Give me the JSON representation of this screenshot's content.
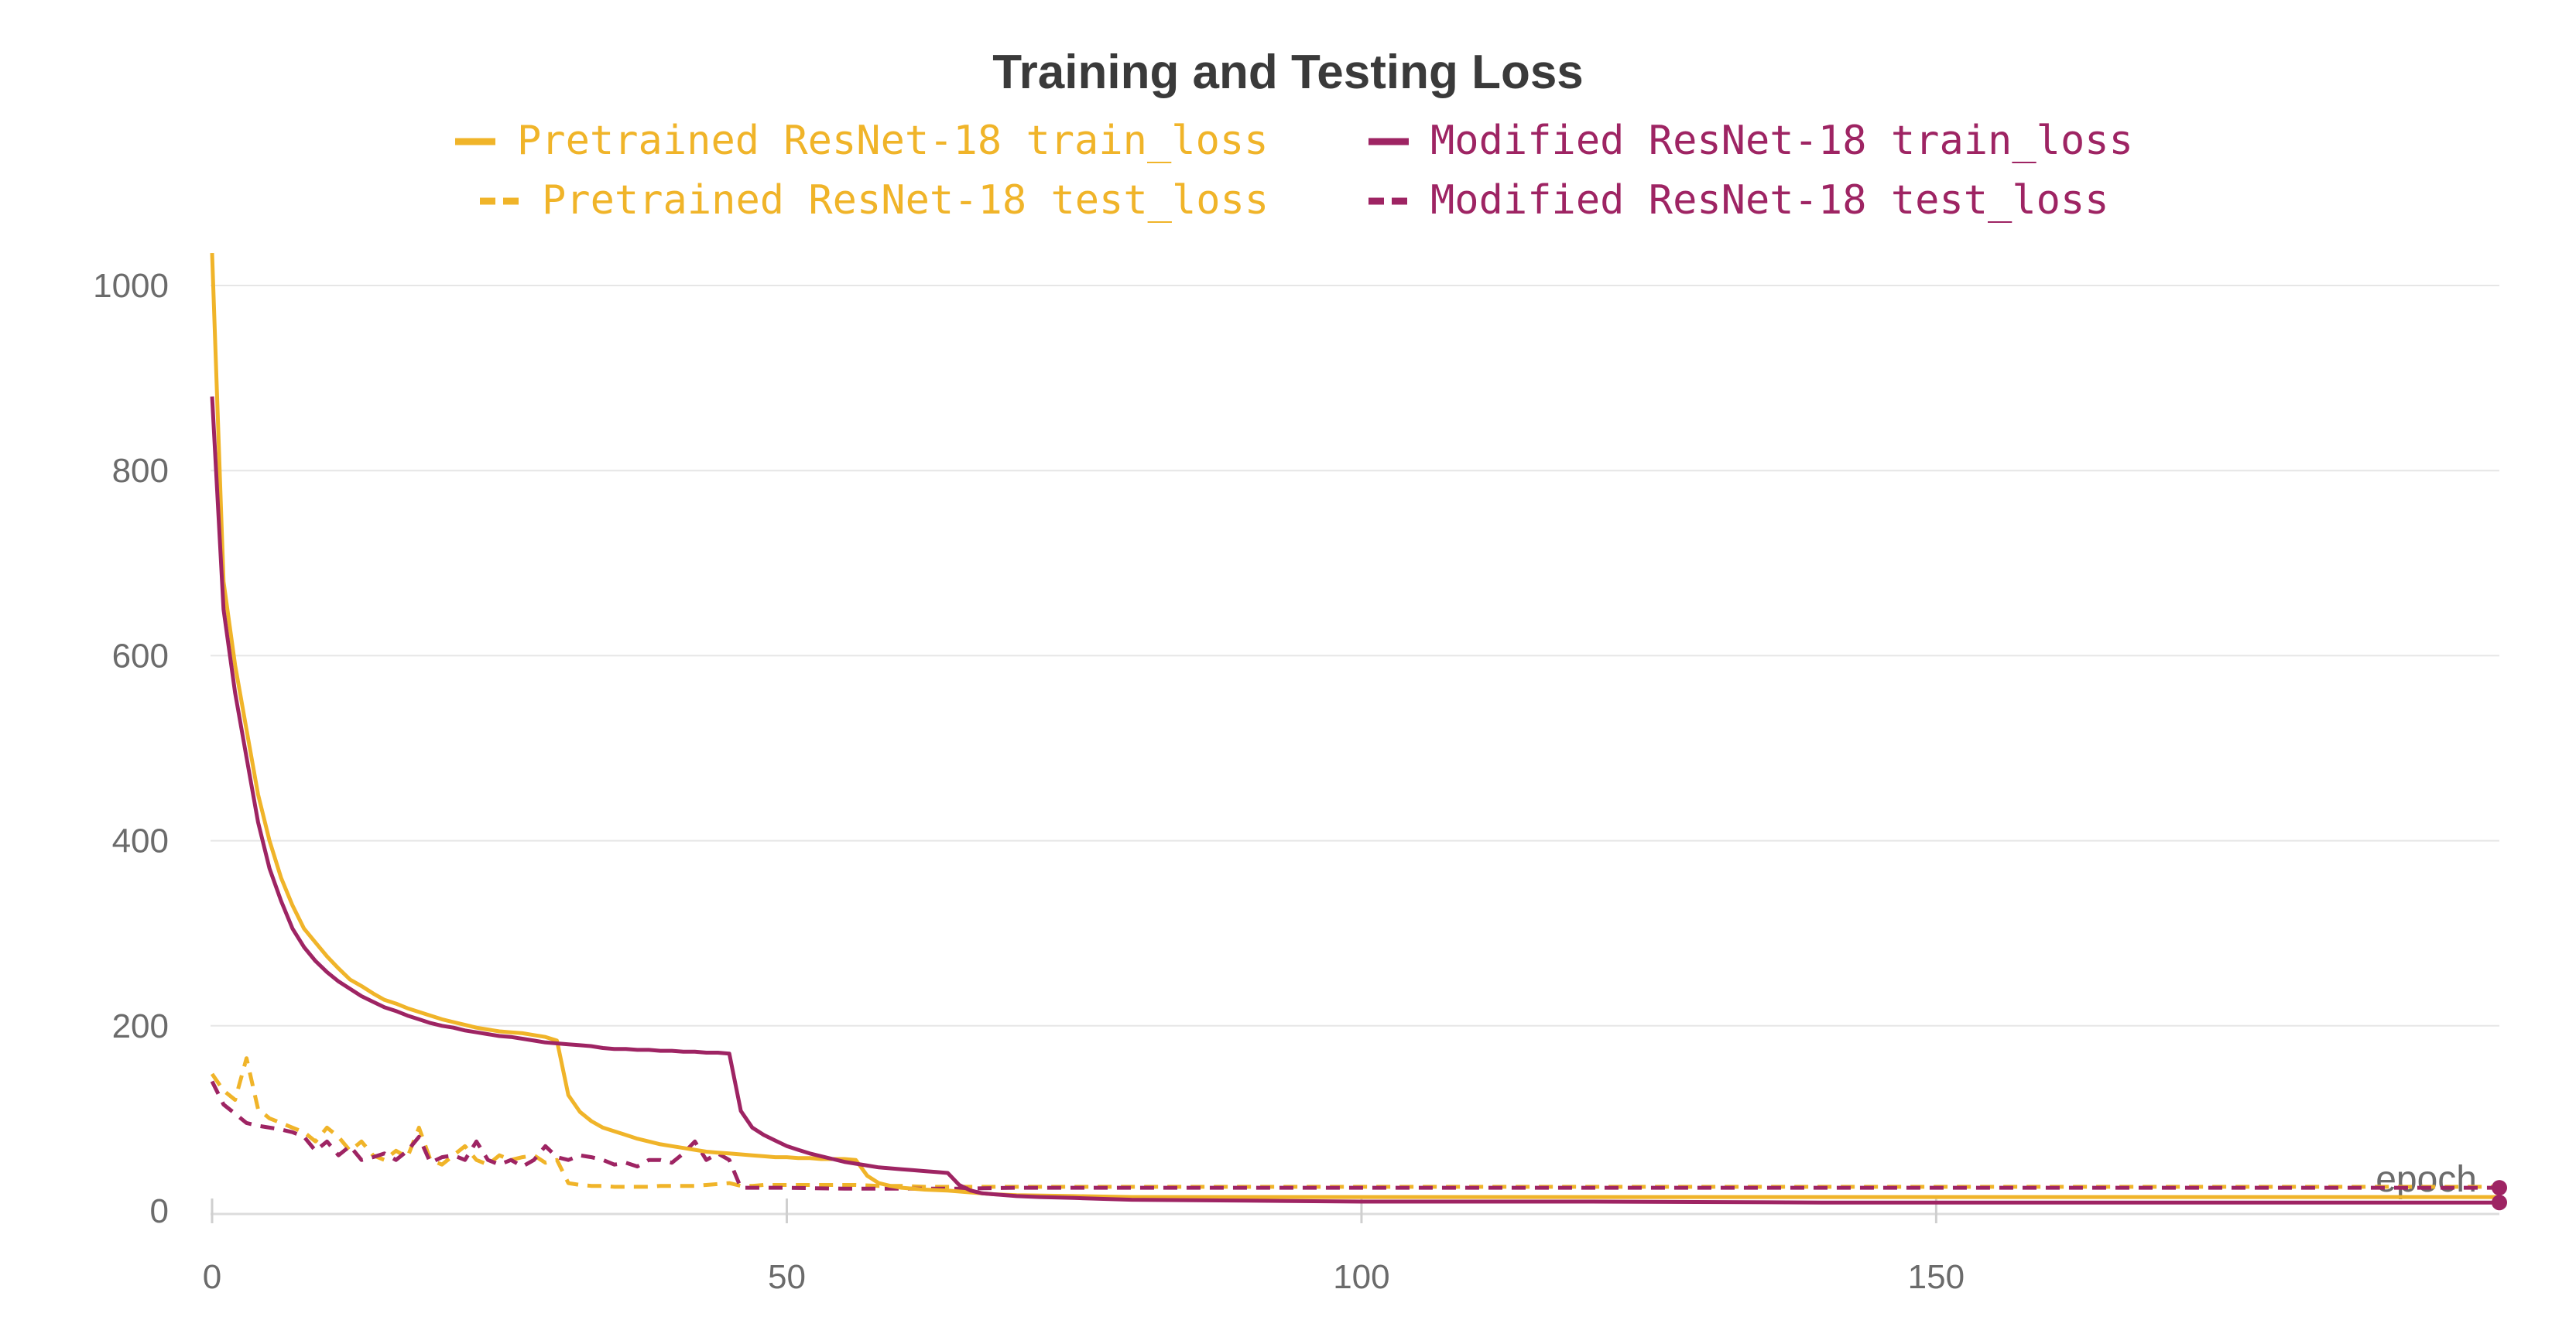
{
  "chart_data": {
    "type": "line",
    "title": "Training and Testing Loss",
    "xlabel": "epoch",
    "ylabel": "",
    "xlim": [
      0,
      199
    ],
    "ylim": [
      0,
      1000
    ],
    "x_ticks": [
      0,
      50,
      100,
      150
    ],
    "y_ticks": [
      0,
      200,
      400,
      600,
      800,
      1000
    ],
    "grid": true,
    "legend_position": "top-center",
    "series": [
      {
        "name": "Pretrained ResNet-18 train_loss",
        "color": "#F0B429",
        "style": "solid",
        "points": [
          [
            0,
            1035
          ],
          [
            1,
            680
          ],
          [
            2,
            590
          ],
          [
            3,
            520
          ],
          [
            4,
            450
          ],
          [
            5,
            400
          ],
          [
            6,
            360
          ],
          [
            7,
            330
          ],
          [
            8,
            305
          ],
          [
            9,
            290
          ],
          [
            10,
            275
          ],
          [
            11,
            262
          ],
          [
            12,
            250
          ],
          [
            13,
            243
          ],
          [
            14,
            235
          ],
          [
            15,
            228
          ],
          [
            16,
            224
          ],
          [
            17,
            219
          ],
          [
            18,
            215
          ],
          [
            19,
            211
          ],
          [
            20,
            207
          ],
          [
            21,
            204
          ],
          [
            22,
            201
          ],
          [
            23,
            198
          ],
          [
            24,
            196
          ],
          [
            25,
            194
          ],
          [
            26,
            193
          ],
          [
            27,
            192
          ],
          [
            28,
            190
          ],
          [
            29,
            188
          ],
          [
            30,
            184
          ],
          [
            31,
            125
          ],
          [
            32,
            107
          ],
          [
            33,
            97
          ],
          [
            34,
            90
          ],
          [
            35,
            86
          ],
          [
            36,
            82
          ],
          [
            37,
            78
          ],
          [
            38,
            75
          ],
          [
            39,
            72
          ],
          [
            40,
            70
          ],
          [
            41,
            68
          ],
          [
            42,
            66
          ],
          [
            43,
            64
          ],
          [
            44,
            63
          ],
          [
            45,
            62
          ],
          [
            46,
            61
          ],
          [
            47,
            60
          ],
          [
            48,
            59
          ],
          [
            49,
            58
          ],
          [
            50,
            58
          ],
          [
            51,
            57
          ],
          [
            52,
            57
          ],
          [
            53,
            56
          ],
          [
            54,
            56
          ],
          [
            55,
            56
          ],
          [
            56,
            55
          ],
          [
            57,
            38
          ],
          [
            58,
            30
          ],
          [
            59,
            27
          ],
          [
            60,
            25
          ],
          [
            62,
            23
          ],
          [
            64,
            22
          ],
          [
            66,
            20
          ],
          [
            68,
            18
          ],
          [
            70,
            17
          ],
          [
            75,
            16
          ],
          [
            80,
            15
          ],
          [
            90,
            15
          ],
          [
            100,
            15
          ],
          [
            120,
            15
          ],
          [
            140,
            15
          ],
          [
            160,
            15
          ],
          [
            180,
            15
          ],
          [
            199,
            15
          ]
        ]
      },
      {
        "name": "Modified ResNet-18 train_loss",
        "color": "#9E2463",
        "style": "solid",
        "points": [
          [
            0,
            880
          ],
          [
            1,
            650
          ],
          [
            2,
            560
          ],
          [
            3,
            490
          ],
          [
            4,
            420
          ],
          [
            5,
            370
          ],
          [
            6,
            335
          ],
          [
            7,
            305
          ],
          [
            8,
            285
          ],
          [
            9,
            270
          ],
          [
            10,
            258
          ],
          [
            11,
            248
          ],
          [
            12,
            240
          ],
          [
            13,
            232
          ],
          [
            14,
            226
          ],
          [
            15,
            220
          ],
          [
            16,
            216
          ],
          [
            17,
            211
          ],
          [
            18,
            207
          ],
          [
            19,
            203
          ],
          [
            20,
            200
          ],
          [
            21,
            198
          ],
          [
            22,
            195
          ],
          [
            23,
            193
          ],
          [
            24,
            191
          ],
          [
            25,
            189
          ],
          [
            26,
            188
          ],
          [
            27,
            186
          ],
          [
            28,
            184
          ],
          [
            29,
            182
          ],
          [
            30,
            181
          ],
          [
            31,
            180
          ],
          [
            32,
            179
          ],
          [
            33,
            178
          ],
          [
            34,
            176
          ],
          [
            35,
            175
          ],
          [
            36,
            175
          ],
          [
            37,
            174
          ],
          [
            38,
            174
          ],
          [
            39,
            173
          ],
          [
            40,
            173
          ],
          [
            41,
            172
          ],
          [
            42,
            172
          ],
          [
            43,
            171
          ],
          [
            44,
            171
          ],
          [
            45,
            170
          ],
          [
            46,
            108
          ],
          [
            47,
            90
          ],
          [
            48,
            82
          ],
          [
            49,
            76
          ],
          [
            50,
            70
          ],
          [
            51,
            66
          ],
          [
            52,
            62
          ],
          [
            53,
            59
          ],
          [
            54,
            56
          ],
          [
            55,
            53
          ],
          [
            56,
            51
          ],
          [
            57,
            49
          ],
          [
            58,
            47
          ],
          [
            59,
            46
          ],
          [
            60,
            45
          ],
          [
            61,
            44
          ],
          [
            62,
            43
          ],
          [
            63,
            42
          ],
          [
            64,
            41
          ],
          [
            65,
            28
          ],
          [
            66,
            22
          ],
          [
            67,
            19
          ],
          [
            68,
            18
          ],
          [
            70,
            16
          ],
          [
            72,
            15
          ],
          [
            75,
            14
          ],
          [
            80,
            12
          ],
          [
            90,
            11
          ],
          [
            100,
            10
          ],
          [
            120,
            10
          ],
          [
            140,
            9
          ],
          [
            160,
            9
          ],
          [
            180,
            9
          ],
          [
            199,
            9
          ]
        ]
      },
      {
        "name": "Pretrained ResNet-18 test_loss",
        "color": "#F0B429",
        "style": "dashed",
        "points": [
          [
            0,
            148
          ],
          [
            1,
            130
          ],
          [
            2,
            120
          ],
          [
            3,
            165
          ],
          [
            4,
            110
          ],
          [
            5,
            100
          ],
          [
            6,
            95
          ],
          [
            7,
            90
          ],
          [
            8,
            85
          ],
          [
            9,
            75
          ],
          [
            10,
            90
          ],
          [
            11,
            80
          ],
          [
            12,
            65
          ],
          [
            13,
            75
          ],
          [
            14,
            60
          ],
          [
            15,
            55
          ],
          [
            16,
            65
          ],
          [
            17,
            58
          ],
          [
            18,
            90
          ],
          [
            19,
            55
          ],
          [
            20,
            50
          ],
          [
            21,
            60
          ],
          [
            22,
            70
          ],
          [
            23,
            55
          ],
          [
            24,
            50
          ],
          [
            25,
            60
          ],
          [
            26,
            55
          ],
          [
            27,
            58
          ],
          [
            28,
            60
          ],
          [
            29,
            52
          ],
          [
            30,
            55
          ],
          [
            31,
            30
          ],
          [
            32,
            28
          ],
          [
            33,
            27
          ],
          [
            34,
            27
          ],
          [
            35,
            26
          ],
          [
            36,
            26
          ],
          [
            37,
            26
          ],
          [
            38,
            26
          ],
          [
            39,
            27
          ],
          [
            40,
            27
          ],
          [
            41,
            27
          ],
          [
            42,
            27
          ],
          [
            43,
            28
          ],
          [
            44,
            29
          ],
          [
            45,
            30
          ],
          [
            46,
            27
          ],
          [
            47,
            27
          ],
          [
            48,
            28
          ],
          [
            49,
            28
          ],
          [
            50,
            28
          ],
          [
            52,
            28
          ],
          [
            54,
            28
          ],
          [
            56,
            28
          ],
          [
            58,
            27
          ],
          [
            60,
            27
          ],
          [
            62,
            26
          ],
          [
            65,
            26
          ],
          [
            70,
            26
          ],
          [
            80,
            26
          ],
          [
            100,
            26
          ],
          [
            120,
            26
          ],
          [
            140,
            26
          ],
          [
            160,
            26
          ],
          [
            180,
            26
          ],
          [
            199,
            26
          ]
        ]
      },
      {
        "name": "Modified ResNet-18 test_loss",
        "color": "#9E2463",
        "style": "dashed",
        "points": [
          [
            0,
            140
          ],
          [
            1,
            115
          ],
          [
            2,
            105
          ],
          [
            3,
            95
          ],
          [
            4,
            92
          ],
          [
            5,
            90
          ],
          [
            6,
            88
          ],
          [
            7,
            85
          ],
          [
            8,
            80
          ],
          [
            9,
            65
          ],
          [
            10,
            75
          ],
          [
            11,
            60
          ],
          [
            12,
            70
          ],
          [
            13,
            55
          ],
          [
            14,
            58
          ],
          [
            15,
            62
          ],
          [
            16,
            55
          ],
          [
            17,
            65
          ],
          [
            18,
            80
          ],
          [
            19,
            52
          ],
          [
            20,
            58
          ],
          [
            21,
            60
          ],
          [
            22,
            55
          ],
          [
            23,
            75
          ],
          [
            24,
            55
          ],
          [
            25,
            50
          ],
          [
            26,
            55
          ],
          [
            27,
            48
          ],
          [
            28,
            55
          ],
          [
            29,
            70
          ],
          [
            30,
            58
          ],
          [
            31,
            55
          ],
          [
            32,
            60
          ],
          [
            33,
            58
          ],
          [
            34,
            55
          ],
          [
            35,
            50
          ],
          [
            36,
            52
          ],
          [
            37,
            48
          ],
          [
            38,
            55
          ],
          [
            39,
            55
          ],
          [
            40,
            52
          ],
          [
            41,
            62
          ],
          [
            42,
            75
          ],
          [
            43,
            55
          ],
          [
            44,
            62
          ],
          [
            45,
            55
          ],
          [
            46,
            25
          ],
          [
            48,
            25
          ],
          [
            50,
            25
          ],
          [
            55,
            24
          ],
          [
            60,
            24
          ],
          [
            65,
            24
          ],
          [
            70,
            25
          ],
          [
            80,
            25
          ],
          [
            100,
            25
          ],
          [
            120,
            25
          ],
          [
            140,
            25
          ],
          [
            160,
            25
          ],
          [
            180,
            25
          ],
          [
            199,
            25
          ]
        ]
      }
    ]
  }
}
